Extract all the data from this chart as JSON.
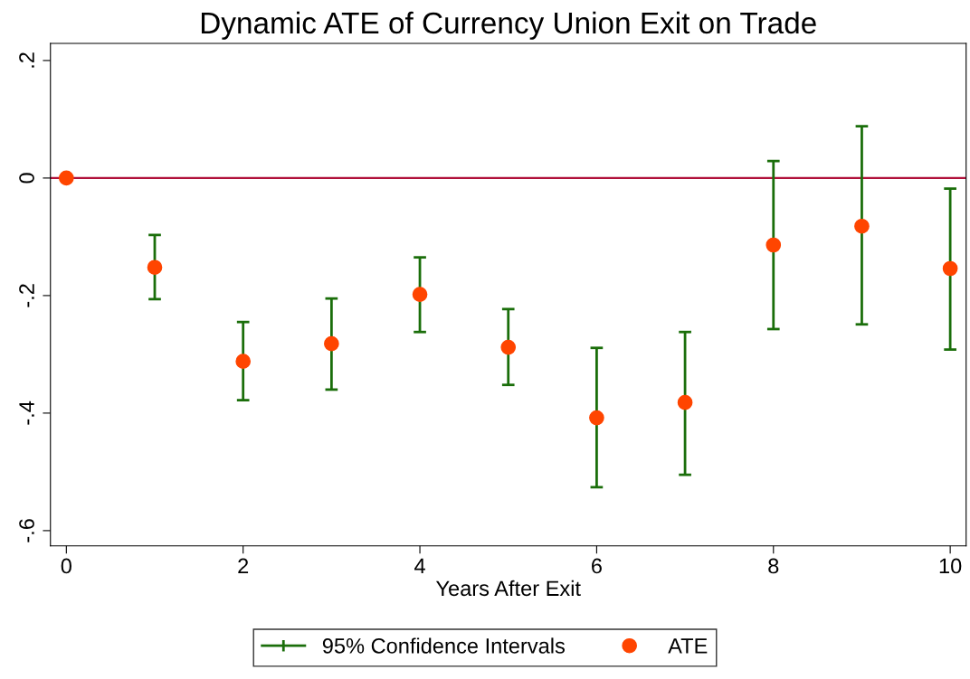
{
  "chart_data": {
    "type": "scatter",
    "title": "Dynamic ATE of Currency Union Exit on Trade",
    "xlabel": "Years After Exit",
    "x": [
      0,
      1,
      2,
      3,
      4,
      5,
      6,
      7,
      8,
      9,
      10
    ],
    "series": [
      {
        "name": "ATE",
        "color": "#ff4500",
        "values": [
          0,
          -0.152,
          -0.312,
          -0.282,
          -0.198,
          -0.288,
          -0.408,
          -0.382,
          -0.114,
          -0.082,
          -0.154
        ],
        "errors": [
          null,
          [
            -0.206,
            -0.097
          ],
          [
            -0.378,
            -0.245
          ],
          [
            -0.36,
            -0.205
          ],
          [
            -0.262,
            -0.135
          ],
          [
            -0.352,
            -0.223
          ],
          [
            -0.526,
            -0.289
          ],
          [
            -0.505,
            -0.262
          ],
          [
            -0.257,
            0.029
          ],
          [
            -0.249,
            0.088
          ],
          [
            -0.292,
            -0.018
          ]
        ]
      }
    ],
    "annotations": [
      "95% Confidence Intervals"
    ],
    "marker": "circle",
    "xlim": [
      -0.18,
      10.18
    ],
    "xticks": [
      0,
      2,
      4,
      6,
      8,
      10
    ],
    "ylim": [
      -0.626,
      0.229
    ],
    "yticks": [
      {
        "value": 0.2,
        "label": ".2"
      },
      0,
      {
        "value": -0.2,
        "label": "-.2"
      },
      {
        "value": -0.4,
        "label": "-.4"
      },
      {
        "value": -0.6,
        "label": "-.6"
      }
    ],
    "ref_lines": [
      {
        "axis": "y",
        "value": 0,
        "color": "#b0103a"
      }
    ],
    "legend": "bottom"
  }
}
